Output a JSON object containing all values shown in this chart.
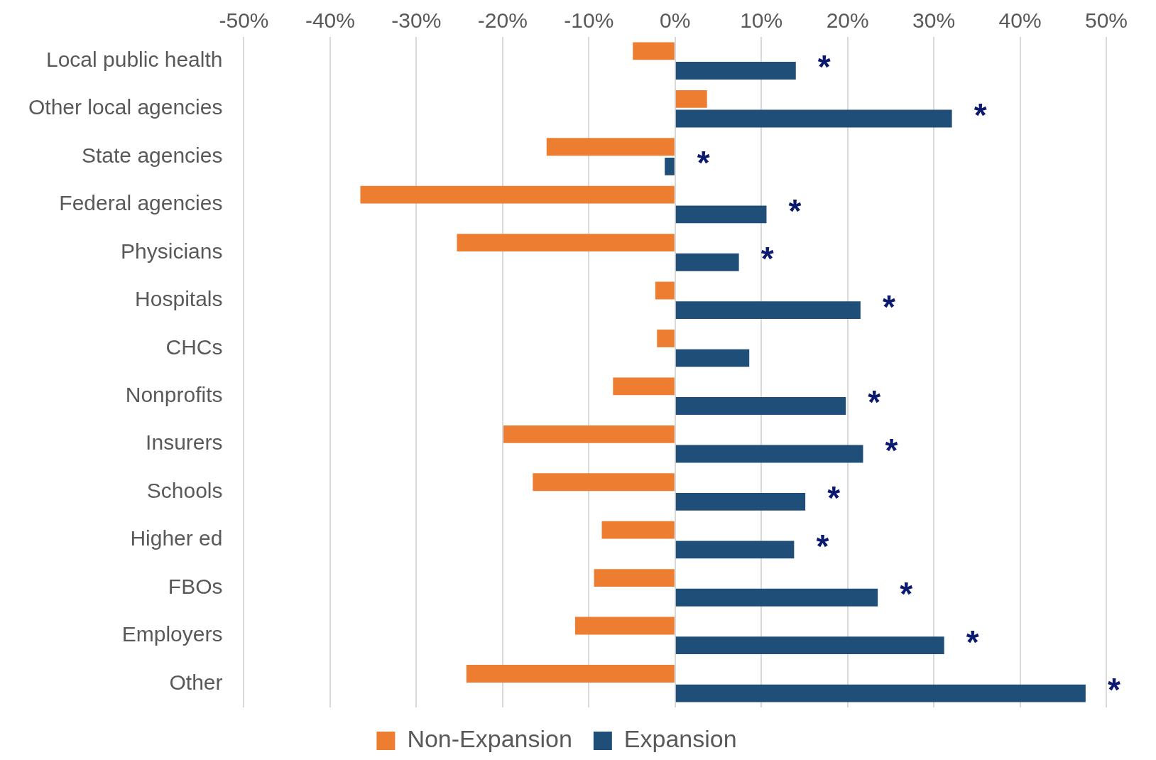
{
  "chart_data": {
    "type": "bar",
    "orientation": "horizontal",
    "categories": [
      "Local public health",
      "Other local agencies",
      "State agencies",
      "Federal agencies",
      "Physicians",
      "Hospitals",
      "CHCs",
      "Nonprofits",
      "Insurers",
      "Schools",
      "Higher ed",
      "FBOs",
      "Employers",
      "Other"
    ],
    "series": [
      {
        "name": "Non-Expansion",
        "color": "#ed7d31",
        "values": [
          -4.9,
          3.7,
          -14.9,
          -36.5,
          -25.3,
          -2.3,
          -2.1,
          -7.2,
          -19.9,
          -16.5,
          -8.5,
          -9.4,
          -11.6,
          -24.2
        ]
      },
      {
        "name": "Expansion",
        "color": "#1f4e79",
        "values": [
          14.0,
          32.1,
          -1.2,
          10.6,
          7.4,
          21.5,
          8.6,
          19.8,
          21.8,
          15.1,
          13.8,
          23.5,
          31.2,
          47.6
        ]
      }
    ],
    "xlim": [
      -50,
      50
    ],
    "xticks": [
      {
        "value": -50,
        "label": "-50%"
      },
      {
        "value": -40,
        "label": "-40%"
      },
      {
        "value": -30,
        "label": "-30%"
      },
      {
        "value": -20,
        "label": "-20%"
      },
      {
        "value": -10,
        "label": "-10%"
      },
      {
        "value": 0,
        "label": "0%"
      },
      {
        "value": 10,
        "label": "10%"
      },
      {
        "value": 20,
        "label": "20%"
      },
      {
        "value": 30,
        "label": "30%"
      },
      {
        "value": 40,
        "label": "40%"
      },
      {
        "value": 50,
        "label": "50%"
      }
    ],
    "grid": "x",
    "legend": "bottom",
    "annotations": [
      {
        "text": "*",
        "x": 14.0,
        "y": "Local public health"
      },
      {
        "text": "*",
        "x": 32.1,
        "y": "Other local agencies"
      },
      {
        "text": "*",
        "x": -1.2,
        "y": "State agencies"
      },
      {
        "text": "*",
        "x": 10.6,
        "y": "Federal agencies"
      },
      {
        "text": "*",
        "x": 7.4,
        "y": "Physicians"
      },
      {
        "text": "*",
        "x": 21.5,
        "y": "Hospitals"
      },
      {
        "text": "*",
        "x": 19.8,
        "y": "Nonprofits"
      },
      {
        "text": "*",
        "x": 21.8,
        "y": "Insurers"
      },
      {
        "text": "*",
        "x": 15.1,
        "y": "Schools"
      },
      {
        "text": "*",
        "x": 13.8,
        "y": "Higher ed"
      },
      {
        "text": "*",
        "x": 23.5,
        "y": "FBOs"
      },
      {
        "text": "*",
        "x": 31.2,
        "y": "Employers"
      },
      {
        "text": "*",
        "x": 47.6,
        "y": "Other"
      }
    ]
  }
}
